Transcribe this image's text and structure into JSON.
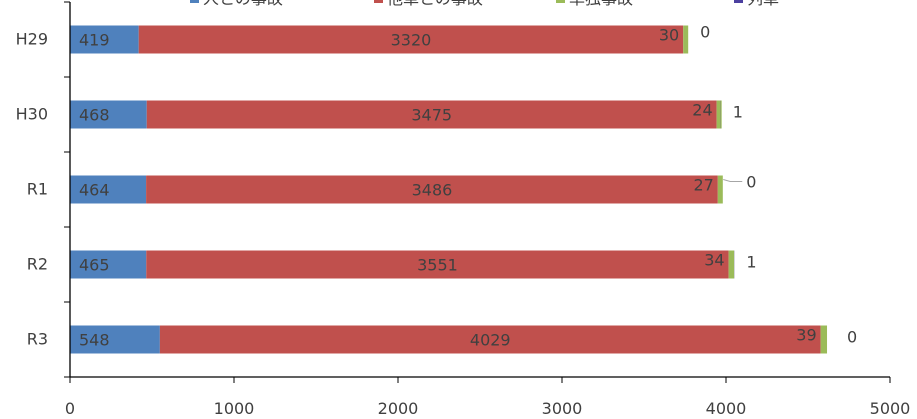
{
  "chart_data": {
    "type": "bar",
    "orientation": "horizontal",
    "stacked": true,
    "legend_position": "top",
    "grid": false,
    "categories": [
      "H29",
      "H30",
      "R1",
      "R2",
      "R3"
    ],
    "xlim": [
      0,
      5000
    ],
    "x_ticks": [
      "0",
      "1000",
      "2000",
      "3000",
      "4000",
      "5000"
    ],
    "series": [
      {
        "name": "人との事故",
        "color": "#4F81BD",
        "values": [
          419,
          468,
          464,
          465,
          548
        ],
        "labels": [
          "419",
          "468",
          "464",
          "465",
          "548"
        ]
      },
      {
        "name": "他車との事故",
        "color": "#C0504D",
        "values": [
          3320,
          3475,
          3486,
          3551,
          4029
        ],
        "labels": [
          "3320",
          "3475",
          "3486",
          "3551",
          "4029"
        ]
      },
      {
        "name": "単独事故",
        "color": "#9BBB59",
        "values": [
          30,
          24,
          27,
          34,
          39
        ],
        "labels": [
          "30",
          "24",
          "27",
          "34",
          "39"
        ]
      },
      {
        "name": "列車",
        "color": "#4B3FA0",
        "values": [
          0,
          1,
          0,
          1,
          0
        ],
        "labels": [
          "0",
          "1",
          "0",
          "1",
          "0"
        ]
      }
    ]
  }
}
